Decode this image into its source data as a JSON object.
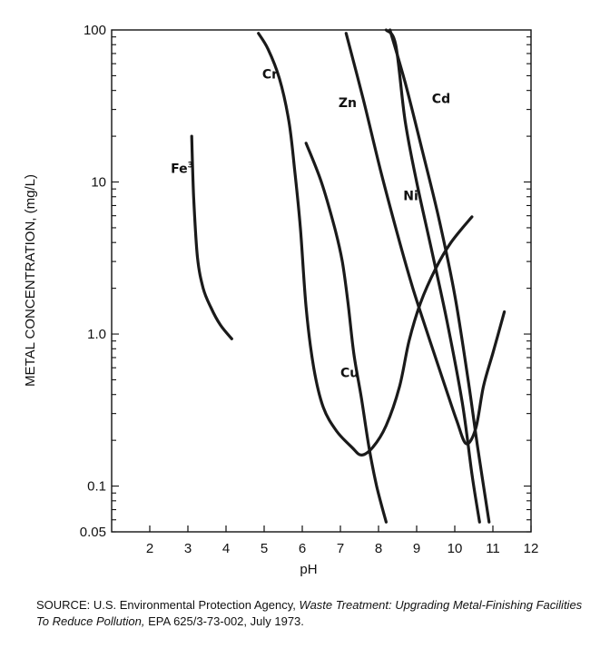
{
  "chart_data": {
    "type": "line",
    "title": "",
    "xlabel": "pH",
    "ylabel": "METAL CONCENTRATION, (mg/L)",
    "y_scale": "log",
    "xlim": [
      1.0,
      12.0
    ],
    "ylim": [
      0.05,
      100
    ],
    "x_ticks": [
      "2",
      "3",
      "4",
      "5",
      "6",
      "7",
      "8",
      "9",
      "10",
      "11",
      "12"
    ],
    "x_tick_values": [
      2,
      3,
      4,
      5,
      6,
      7,
      8,
      9,
      10,
      11,
      12
    ],
    "y_ticks": [
      "100",
      "10",
      "1.0",
      "0.1",
      "0.05"
    ],
    "y_tick_values": [
      100,
      10,
      1.0,
      0.1,
      0.05
    ],
    "grid": false,
    "legend": "none",
    "series": [
      {
        "name": "Fe",
        "superscript": "3",
        "label_at": [
          2.55,
          11.5
        ],
        "points": [
          [
            3.1,
            20
          ],
          [
            3.15,
            8
          ],
          [
            3.25,
            3.2
          ],
          [
            3.4,
            2.0
          ],
          [
            3.6,
            1.5
          ],
          [
            3.85,
            1.15
          ],
          [
            4.15,
            0.93
          ]
        ]
      },
      {
        "name": "Cr",
        "label_at": [
          4.95,
          48
        ],
        "points": [
          [
            4.85,
            95
          ],
          [
            5.1,
            75
          ],
          [
            5.4,
            48
          ],
          [
            5.65,
            25
          ],
          [
            5.8,
            12
          ],
          [
            5.95,
            5
          ],
          [
            6.1,
            1.5
          ],
          [
            6.3,
            0.6
          ],
          [
            6.55,
            0.33
          ],
          [
            6.9,
            0.23
          ],
          [
            7.3,
            0.18
          ],
          [
            7.55,
            0.16
          ],
          [
            7.85,
            0.18
          ],
          [
            8.2,
            0.25
          ],
          [
            8.55,
            0.45
          ],
          [
            8.8,
            0.9
          ],
          [
            9.1,
            1.6
          ],
          [
            9.5,
            2.7
          ],
          [
            9.9,
            4.0
          ],
          [
            10.45,
            5.9
          ]
        ]
      },
      {
        "name": "Cu",
        "label_at": [
          7.0,
          0.52
        ],
        "points": [
          [
            6.1,
            18
          ],
          [
            6.5,
            10
          ],
          [
            6.85,
            5
          ],
          [
            7.05,
            3
          ],
          [
            7.2,
            1.6
          ],
          [
            7.35,
            0.75
          ],
          [
            7.55,
            0.38
          ],
          [
            7.75,
            0.18
          ],
          [
            7.95,
            0.1
          ],
          [
            8.2,
            0.058
          ]
        ]
      },
      {
        "name": "Zn",
        "label_at": [
          6.95,
          31
        ],
        "points": [
          [
            7.15,
            95
          ],
          [
            7.6,
            35
          ],
          [
            8.05,
            12
          ],
          [
            8.5,
            4.5
          ],
          [
            8.9,
            2.0
          ],
          [
            9.35,
            0.9
          ],
          [
            9.75,
            0.45
          ],
          [
            10.05,
            0.27
          ],
          [
            10.3,
            0.19
          ],
          [
            10.55,
            0.24
          ],
          [
            10.75,
            0.45
          ],
          [
            11.0,
            0.75
          ],
          [
            11.3,
            1.4
          ]
        ]
      },
      {
        "name": "Ni",
        "label_at": [
          8.65,
          7.6
        ],
        "points": [
          [
            8.2,
            100
          ],
          [
            8.45,
            80
          ],
          [
            8.7,
            25
          ],
          [
            9.0,
            10
          ],
          [
            9.4,
            3.5
          ],
          [
            9.8,
            1.2
          ],
          [
            10.2,
            0.35
          ],
          [
            10.45,
            0.12
          ],
          [
            10.65,
            0.058
          ]
        ]
      },
      {
        "name": "Cd",
        "label_at": [
          9.4,
          33
        ],
        "points": [
          [
            8.3,
            100
          ],
          [
            8.7,
            45
          ],
          [
            9.15,
            16
          ],
          [
            9.6,
            5.5
          ],
          [
            10.0,
            1.8
          ],
          [
            10.35,
            0.5
          ],
          [
            10.6,
            0.18
          ],
          [
            10.9,
            0.058
          ]
        ]
      }
    ]
  },
  "source": {
    "label": "SOURCE:",
    "agency": "U.S. Environmental Protection Agency,",
    "title": "Waste Treatment: Upgrading Metal-Finishing Facilities To Reduce Pollution,",
    "ref": "EPA 625/3-73-002, July 1973."
  }
}
